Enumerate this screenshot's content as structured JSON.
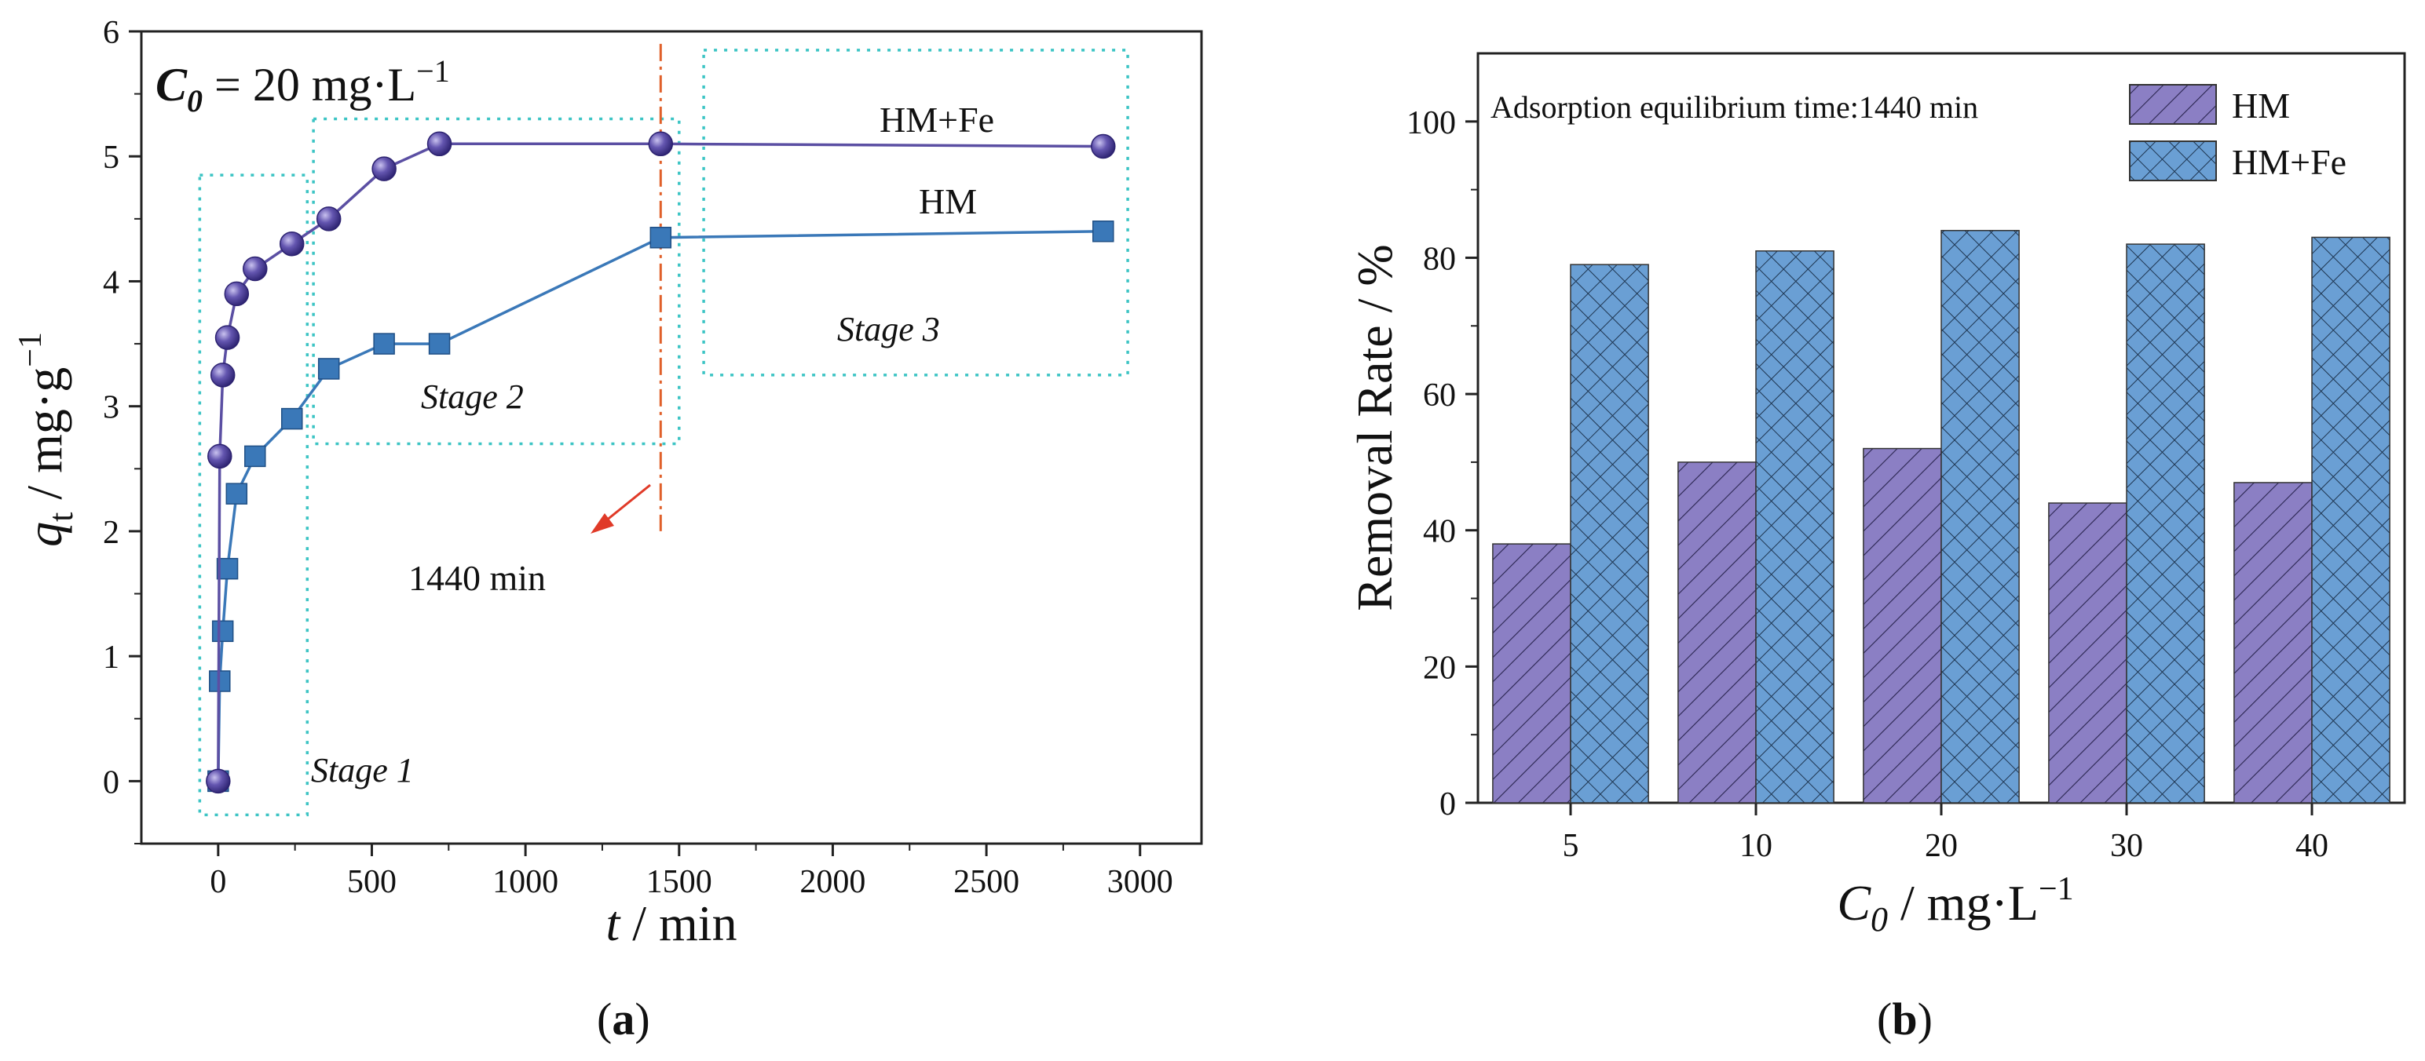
{
  "chart_data": [
    {
      "type": "line",
      "panel_label": "(a)",
      "panel_letter": "a",
      "conc_label": {
        "symbol": "C",
        "subscript": "0",
        "text": " = 20 mg·L",
        "sup": "−1"
      },
      "xlabel": {
        "symbol": "t",
        "text": " / min"
      },
      "ylabel": {
        "symbol": "q",
        "subscript": "t",
        "text": " / mg·g",
        "sup": "−1"
      },
      "xlim": [
        -250,
        3200
      ],
      "ylim": [
        -0.5,
        6
      ],
      "xticks": [
        0,
        500,
        1000,
        1500,
        2000,
        2500,
        3000
      ],
      "yticks": [
        0,
        1,
        2,
        3,
        4,
        5,
        6
      ],
      "series": [
        {
          "name": "HM+Fe",
          "marker": "circle",
          "color": "#5b4fa3",
          "x": [
            0,
            5,
            15,
            30,
            60,
            120,
            240,
            360,
            540,
            720,
            1440,
            2880
          ],
          "y": [
            0,
            2.6,
            3.25,
            3.55,
            3.9,
            4.1,
            4.3,
            4.5,
            4.9,
            5.1,
            5.1,
            5.08
          ]
        },
        {
          "name": "HM",
          "marker": "square",
          "color": "#3a78b8",
          "x": [
            0,
            5,
            15,
            30,
            60,
            120,
            240,
            360,
            540,
            720,
            1440,
            2880
          ],
          "y": [
            0,
            0.8,
            1.2,
            1.7,
            2.3,
            2.6,
            2.9,
            3.3,
            3.5,
            3.5,
            4.35,
            4.4
          ]
        }
      ],
      "annotations": [
        {
          "text": "1440 min",
          "x_ref": 1440
        },
        {
          "text": "Stage  1",
          "x0": -60,
          "x1": 290,
          "y0": -0.27,
          "y1": 4.85
        },
        {
          "text": "Stage  2",
          "x0": 310,
          "x1": 1500,
          "y0": 2.7,
          "y1": 5.3
        },
        {
          "text": "Stage  3",
          "x0": 1580,
          "x1": 2960,
          "y0": 3.25,
          "y1": 5.85
        }
      ]
    },
    {
      "type": "bar",
      "panel_label": "(b)",
      "panel_letter": "b",
      "title_annotation": "Adsorption equilibrium time:1440 min",
      "categories": [
        "5",
        "10",
        "20",
        "30",
        "40"
      ],
      "xlabel": {
        "symbol": "C",
        "subscript": "0",
        "text": " / mg·L",
        "sup": "−1"
      },
      "ylabel": "Removal Rate / %",
      "ylim": [
        0,
        110
      ],
      "yticks": [
        0,
        20,
        40,
        60,
        80,
        100
      ],
      "series": [
        {
          "name": "HM",
          "color": "#8b7fc4",
          "pattern": "diagonal",
          "values": [
            38,
            50,
            52,
            44,
            47
          ]
        },
        {
          "name": "HM+Fe",
          "color": "#6a9fd4",
          "pattern": "crosshatch",
          "values": [
            79,
            81,
            84,
            82,
            83
          ]
        }
      ]
    }
  ]
}
